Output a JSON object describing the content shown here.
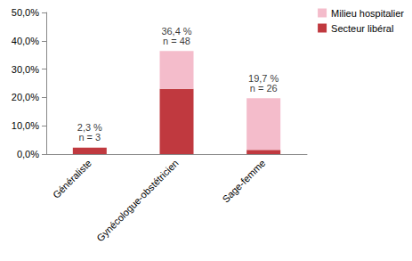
{
  "chart_data": {
    "type": "bar",
    "stacked": true,
    "categories": [
      "Généraliste",
      "Gynécologue-obstétricien",
      "Sage-femme"
    ],
    "series": [
      {
        "name": "Secteur libéral",
        "color": "#c0393f",
        "values": [
          2.3,
          23.0,
          1.5
        ]
      },
      {
        "name": "Milieu hospitalier",
        "color": "#f4bccb",
        "values": [
          0,
          13.4,
          18.2
        ]
      }
    ],
    "annotations": [
      {
        "category": "Généraliste",
        "value": 2.3,
        "label": "2,3 %\nn = 3"
      },
      {
        "category": "Gynécologue-obstétricien",
        "value": 36.4,
        "label": "36,4 %\nn = 48"
      },
      {
        "category": "Sage-femme",
        "value": 19.7,
        "label": "19,7 %\nn = 26"
      }
    ],
    "ylim": [
      0,
      50
    ],
    "yticks": [
      {
        "value": 0,
        "label": "0,0%"
      },
      {
        "value": 10,
        "label": "10,0%"
      },
      {
        "value": 20,
        "label": "20,0%"
      },
      {
        "value": 30,
        "label": "30,0%"
      },
      {
        "value": 40,
        "label": "40,0%"
      },
      {
        "value": 50,
        "label": "50,0%"
      }
    ],
    "grid": false,
    "legend": "upper right"
  }
}
